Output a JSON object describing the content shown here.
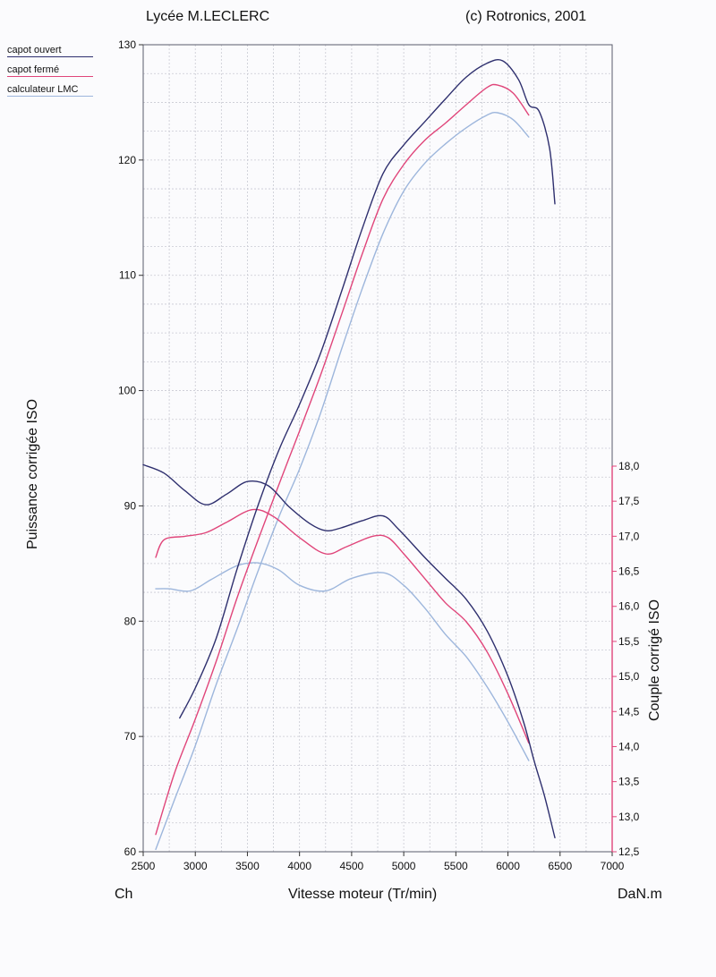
{
  "header": {
    "left": "Lycée M.LECLERC",
    "right": "(c) Rotronics, 2001"
  },
  "legend": [
    {
      "label": "capot ouvert",
      "color": "#2e2f6e"
    },
    {
      "label": "capot fermé",
      "color": "#e0457a"
    },
    {
      "label": "calculateur LMC",
      "color": "#9db6dc"
    }
  ],
  "chart_data": {
    "type": "line",
    "xlabel": "Vitesse moteur (Tr/min)",
    "ylabel_left": "Puissance corrigée ISO",
    "ylabel_right": "Couple corrigé ISO",
    "unit_left": "Ch",
    "unit_right": "DaN.m",
    "xlim": [
      2500,
      7000
    ],
    "ylim_left": [
      60,
      130
    ],
    "ylim_right": [
      12.5,
      18.0
    ],
    "x_ticks": [
      "2500",
      "3000",
      "3500",
      "4000",
      "4500",
      "5000",
      "5500",
      "6000",
      "6500",
      "7000"
    ],
    "y_ticks_left": [
      "60",
      "70",
      "80",
      "90",
      "100",
      "110",
      "120",
      "130"
    ],
    "y_ticks_right": [
      "12,5",
      "13,0",
      "13,5",
      "14,0",
      "14,5",
      "15,0",
      "15,5",
      "16,0",
      "16,5",
      "17,0",
      "17,5",
      "18,0"
    ],
    "grid": true,
    "series": [
      {
        "name": "capot ouvert",
        "kind": "puissance",
        "axis": "left",
        "color": "#2e2f6e",
        "points": [
          [
            2850,
            71.6
          ],
          [
            3000,
            74.2
          ],
          [
            3200,
            78.5
          ],
          [
            3400,
            84.5
          ],
          [
            3600,
            90.0
          ],
          [
            3800,
            94.8
          ],
          [
            4000,
            98.8
          ],
          [
            4200,
            103.2
          ],
          [
            4400,
            108.5
          ],
          [
            4600,
            114.0
          ],
          [
            4800,
            118.8
          ],
          [
            5000,
            121.3
          ],
          [
            5200,
            123.3
          ],
          [
            5400,
            125.3
          ],
          [
            5600,
            127.2
          ],
          [
            5800,
            128.4
          ],
          [
            5950,
            128.6
          ],
          [
            6100,
            127.0
          ],
          [
            6200,
            124.8
          ],
          [
            6300,
            124.2
          ],
          [
            6400,
            121.0
          ],
          [
            6450,
            116.2
          ]
        ]
      },
      {
        "name": "capot fermé",
        "kind": "puissance",
        "axis": "left",
        "color": "#e0457a",
        "points": [
          [
            2620,
            61.5
          ],
          [
            2800,
            66.8
          ],
          [
            3000,
            71.5
          ],
          [
            3200,
            76.5
          ],
          [
            3400,
            82.0
          ],
          [
            3600,
            87.0
          ],
          [
            3800,
            91.8
          ],
          [
            4000,
            96.5
          ],
          [
            4200,
            101.3
          ],
          [
            4400,
            106.5
          ],
          [
            4600,
            111.8
          ],
          [
            4800,
            116.6
          ],
          [
            5000,
            119.6
          ],
          [
            5200,
            121.7
          ],
          [
            5400,
            123.2
          ],
          [
            5600,
            124.8
          ],
          [
            5800,
            126.3
          ],
          [
            5900,
            126.5
          ],
          [
            6050,
            125.8
          ],
          [
            6200,
            123.9
          ]
        ]
      },
      {
        "name": "calculateur LMC",
        "kind": "puissance",
        "axis": "left",
        "color": "#9db6dc",
        "points": [
          [
            2620,
            60.2
          ],
          [
            2800,
            64.5
          ],
          [
            3000,
            69.2
          ],
          [
            3200,
            74.5
          ],
          [
            3400,
            79.3
          ],
          [
            3600,
            84.3
          ],
          [
            3800,
            89.0
          ],
          [
            4000,
            93.2
          ],
          [
            4200,
            98.0
          ],
          [
            4400,
            103.5
          ],
          [
            4600,
            108.8
          ],
          [
            4800,
            113.6
          ],
          [
            5000,
            117.3
          ],
          [
            5200,
            119.7
          ],
          [
            5400,
            121.4
          ],
          [
            5600,
            122.8
          ],
          [
            5800,
            123.9
          ],
          [
            5900,
            124.1
          ],
          [
            6050,
            123.5
          ],
          [
            6200,
            122.0
          ]
        ]
      },
      {
        "name": "capot ouvert",
        "kind": "couple",
        "axis": "right",
        "color": "#2e2f6e",
        "points": [
          [
            2500,
            18.02
          ],
          [
            2700,
            17.9
          ],
          [
            2900,
            17.65
          ],
          [
            3100,
            17.45
          ],
          [
            3300,
            17.6
          ],
          [
            3500,
            17.78
          ],
          [
            3700,
            17.72
          ],
          [
            3900,
            17.42
          ],
          [
            4100,
            17.18
          ],
          [
            4250,
            17.08
          ],
          [
            4400,
            17.12
          ],
          [
            4600,
            17.22
          ],
          [
            4800,
            17.29
          ],
          [
            4950,
            17.1
          ],
          [
            5200,
            16.7
          ],
          [
            5400,
            16.4
          ],
          [
            5600,
            16.1
          ],
          [
            5800,
            15.65
          ],
          [
            6000,
            15.0
          ],
          [
            6150,
            14.35
          ],
          [
            6250,
            13.8
          ],
          [
            6350,
            13.3
          ],
          [
            6450,
            12.7
          ]
        ]
      },
      {
        "name": "capot fermé",
        "kind": "couple",
        "axis": "right",
        "color": "#e0457a",
        "points": [
          [
            2620,
            16.7
          ],
          [
            2700,
            16.95
          ],
          [
            2900,
            17.0
          ],
          [
            3100,
            17.05
          ],
          [
            3300,
            17.2
          ],
          [
            3550,
            17.38
          ],
          [
            3750,
            17.28
          ],
          [
            4000,
            16.98
          ],
          [
            4250,
            16.75
          ],
          [
            4450,
            16.85
          ],
          [
            4700,
            17.0
          ],
          [
            4850,
            16.98
          ],
          [
            5000,
            16.75
          ],
          [
            5200,
            16.4
          ],
          [
            5400,
            16.05
          ],
          [
            5600,
            15.78
          ],
          [
            5800,
            15.35
          ],
          [
            6000,
            14.75
          ],
          [
            6200,
            14.05
          ]
        ]
      },
      {
        "name": "calculateur LMC",
        "kind": "couple",
        "axis": "right",
        "color": "#9db6dc",
        "points": [
          [
            2620,
            16.25
          ],
          [
            2750,
            16.25
          ],
          [
            2950,
            16.22
          ],
          [
            3150,
            16.38
          ],
          [
            3400,
            16.58
          ],
          [
            3600,
            16.62
          ],
          [
            3800,
            16.52
          ],
          [
            4000,
            16.3
          ],
          [
            4250,
            16.22
          ],
          [
            4500,
            16.4
          ],
          [
            4800,
            16.48
          ],
          [
            5000,
            16.3
          ],
          [
            5200,
            15.98
          ],
          [
            5400,
            15.6
          ],
          [
            5600,
            15.28
          ],
          [
            5800,
            14.85
          ],
          [
            6000,
            14.35
          ],
          [
            6200,
            13.8
          ]
        ]
      }
    ]
  }
}
